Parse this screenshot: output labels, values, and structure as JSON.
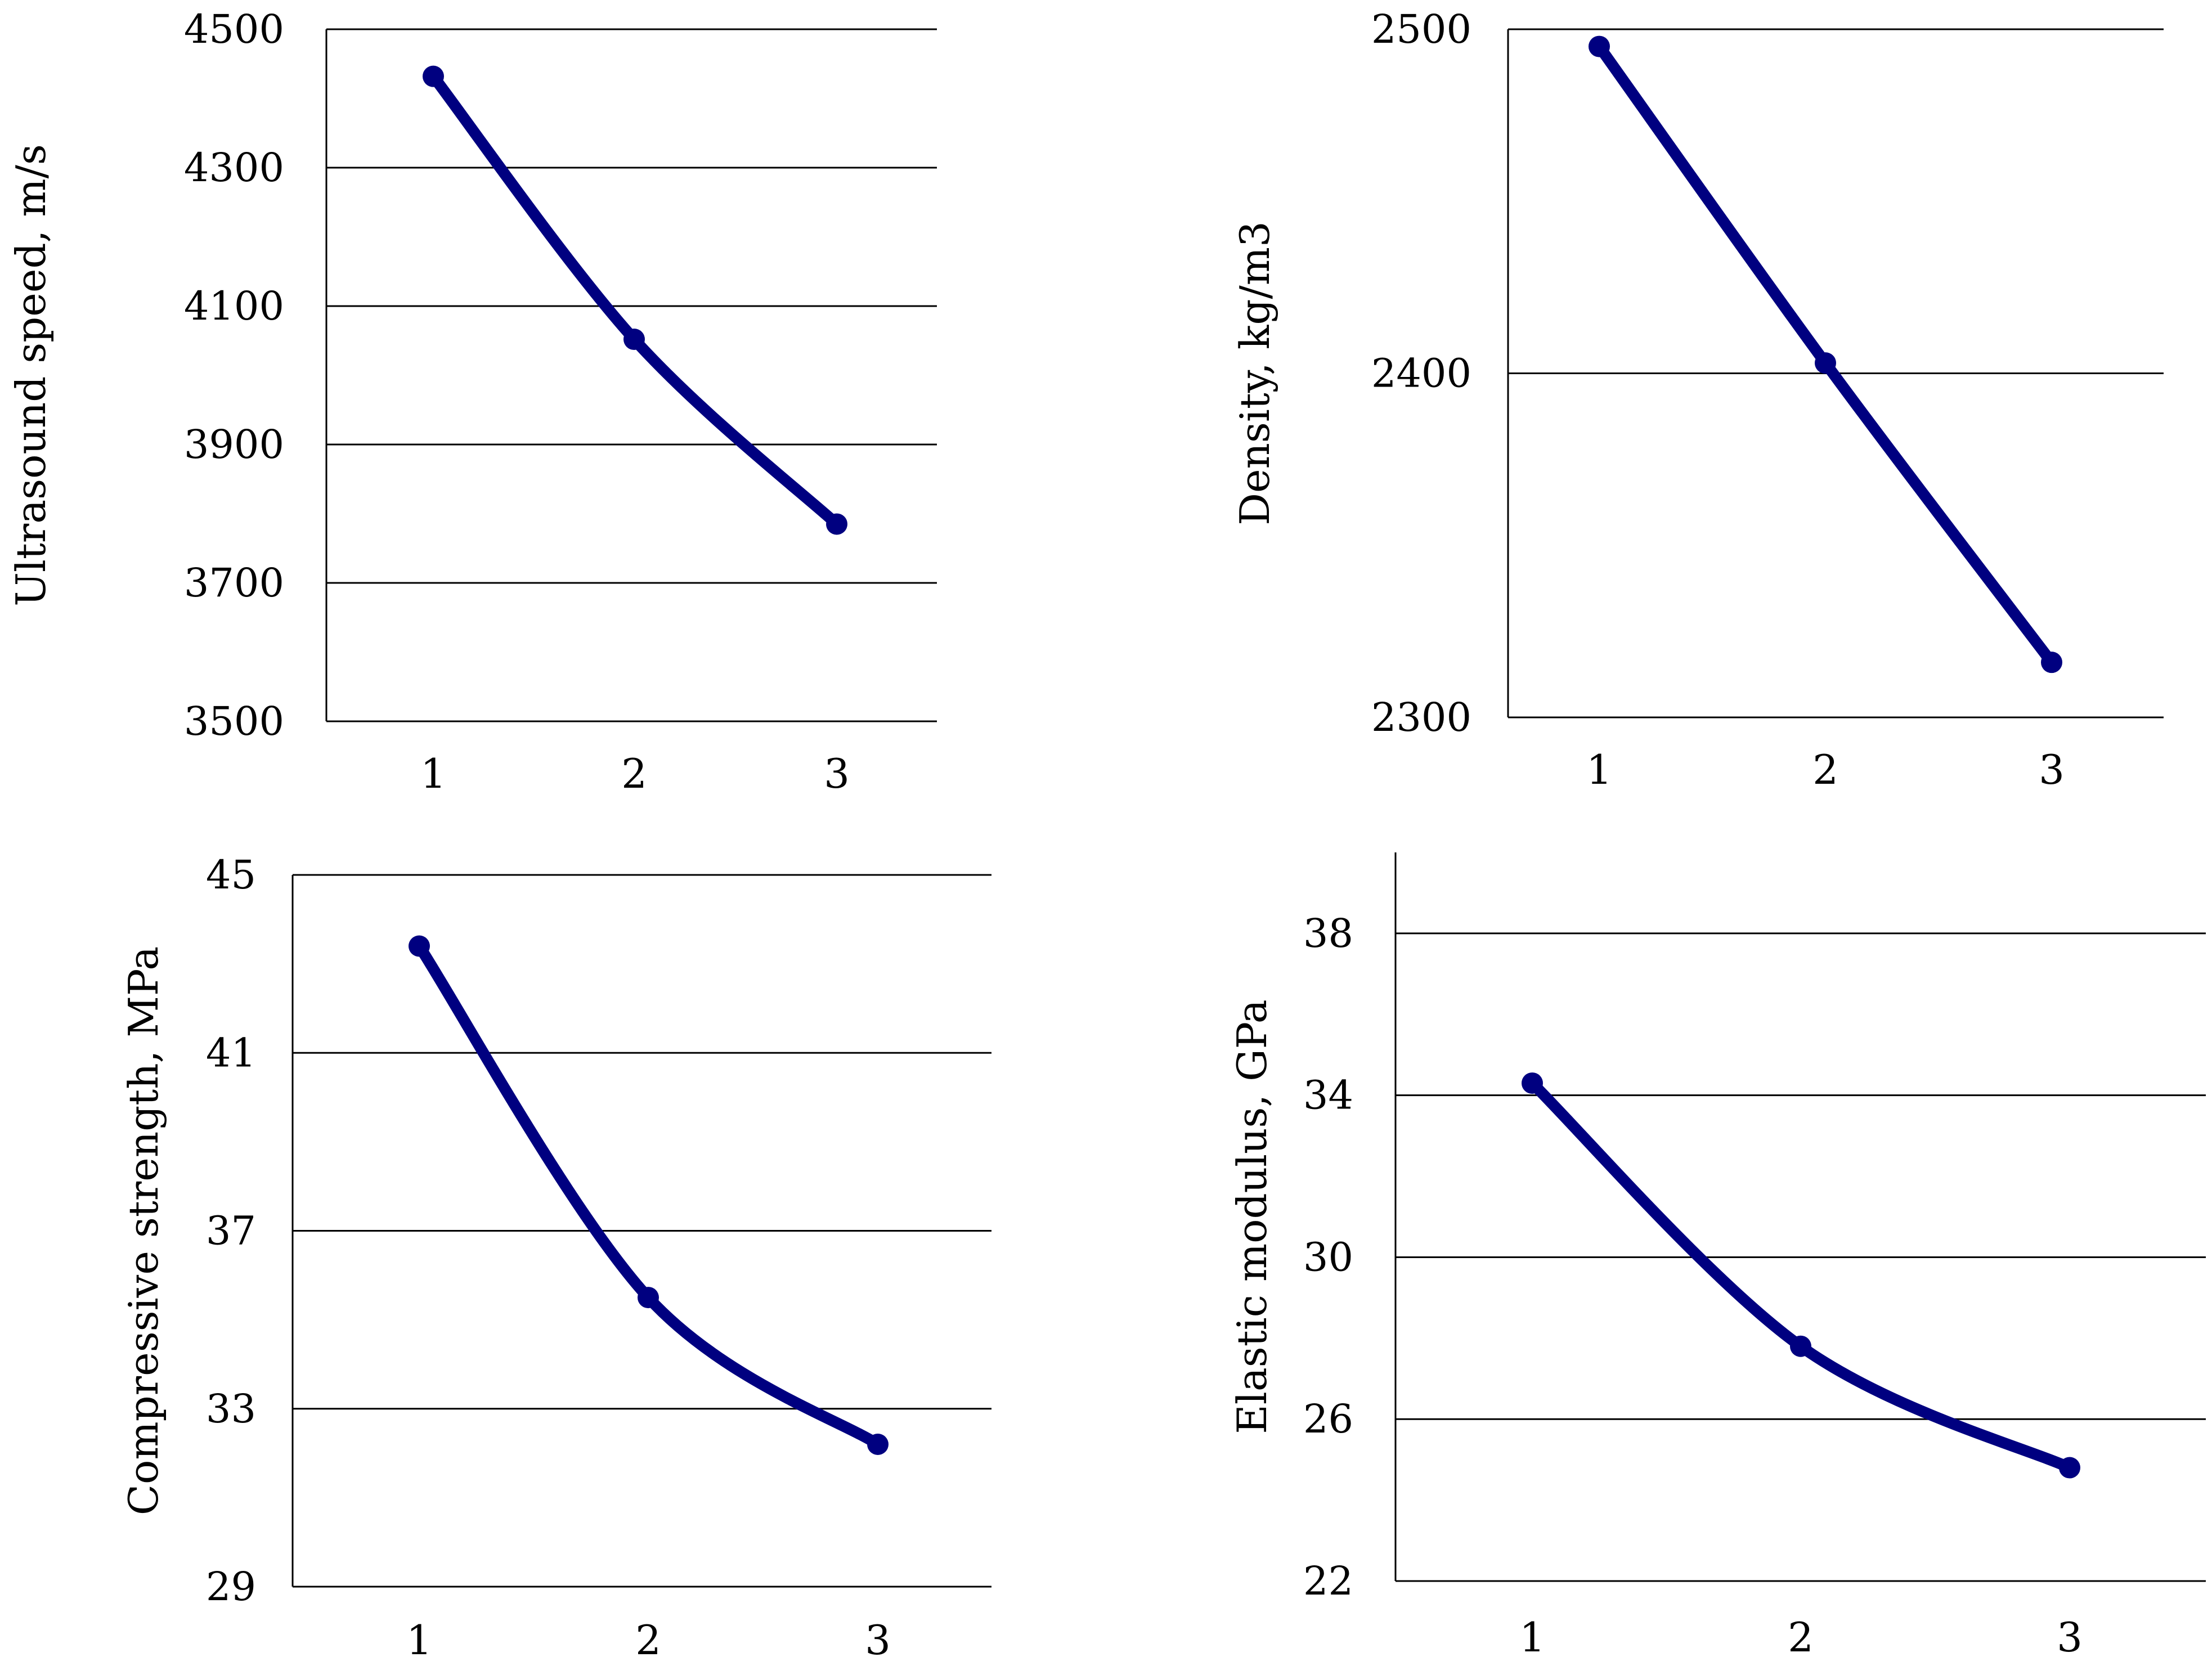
{
  "colors": {
    "series": "#000080",
    "axis": "#000000",
    "grid": "#000000"
  },
  "chart_data": [
    {
      "type": "line",
      "categories": [
        "1",
        "2",
        "3"
      ],
      "values": [
        4432,
        4052,
        3785
      ],
      "ylabel": "Ultrasound speed, m/s",
      "ylim": [
        3500,
        4500
      ],
      "yticks": [
        3500,
        3700,
        3900,
        4100,
        4300,
        4500
      ],
      "yticklabels": [
        "3500",
        "3700",
        "3900",
        "4100",
        "4300",
        "4500"
      ],
      "grid": true,
      "legend": "none"
    },
    {
      "type": "line",
      "categories": [
        "1",
        "2",
        "3"
      ],
      "values": [
        2495,
        2403,
        2316
      ],
      "ylabel": "Density, kg/m3",
      "ylim": [
        2300,
        2500
      ],
      "yticks": [
        2300,
        2400,
        2500
      ],
      "yticklabels": [
        "2300",
        "2400",
        "2500"
      ],
      "grid": true,
      "legend": "none"
    },
    {
      "type": "line",
      "categories": [
        "1",
        "2",
        "3"
      ],
      "values": [
        43.4,
        35.5,
        32.2
      ],
      "ylabel": "Compressive strength, MPa",
      "ylim": [
        29,
        45
      ],
      "yticks": [
        29,
        33,
        37,
        41,
        45
      ],
      "yticklabels": [
        "29",
        "33",
        "37",
        "41",
        "45"
      ],
      "grid": true,
      "legend": "none"
    },
    {
      "type": "line",
      "categories": [
        "1",
        "2",
        "3"
      ],
      "values": [
        34.3,
        27.8,
        24.8
      ],
      "ylabel": "Elastic modulus, GPa",
      "ylim": [
        22,
        40
      ],
      "yticks": [
        22,
        26,
        30,
        34,
        38
      ],
      "yticklabels": [
        "22",
        "26",
        "30",
        "34",
        "38"
      ],
      "grid": true,
      "legend": "none"
    }
  ]
}
